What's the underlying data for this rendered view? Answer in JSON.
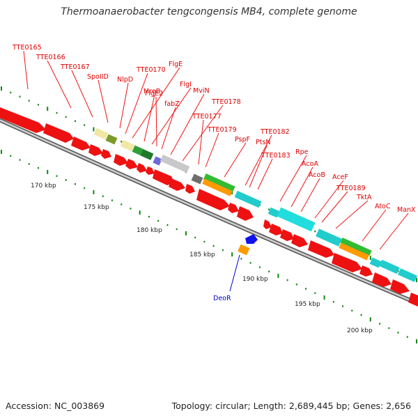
{
  "title": "Thermoanaerobacter tengcongensis MB4, complete genome",
  "footer": {
    "accession": "Accession: NC_003869",
    "summary": "Topology: circular; Length: 2,689,445 bp; Genes: 2,656"
  },
  "colors": {
    "backbone": "#7a7a7a",
    "cds": "#ee1111",
    "tick": "#118811",
    "label_line": "#ee1111",
    "label_text": "#dd0000",
    "reverse_label": "#0000cc"
  },
  "scale_labels": [
    {
      "text": "170 kbp"
    },
    {
      "text": "175 kbp"
    },
    {
      "text": "180 kbp"
    },
    {
      "text": "185 kbp"
    },
    {
      "text": "190 kbp"
    },
    {
      "text": "195 kbp"
    },
    {
      "text": "200 kbp"
    }
  ],
  "gene_labels": [
    {
      "text": "TTE0165"
    },
    {
      "text": "TTE0166"
    },
    {
      "text": "TTE0167"
    },
    {
      "text": "SpoIID"
    },
    {
      "text": "NlpD"
    },
    {
      "text": "TTE0170"
    },
    {
      "text": "FlgE"
    },
    {
      "text": "MreB"
    },
    {
      "text": "FlgI"
    },
    {
      "text": "FlgE2"
    },
    {
      "text": "MviN"
    },
    {
      "text": "fabZ"
    },
    {
      "text": "TTE0178"
    },
    {
      "text": "TTE0177"
    },
    {
      "text": "TTE0179"
    },
    {
      "text": "TTE0182"
    },
    {
      "text": "PspF"
    },
    {
      "text": "PtsN"
    },
    {
      "text": "TTE0183"
    },
    {
      "text": "Rpe"
    },
    {
      "text": "AcoA"
    },
    {
      "text": "AcoB"
    },
    {
      "text": "AceF"
    },
    {
      "text": "TTE0189"
    },
    {
      "text": "TktA"
    },
    {
      "text": "AtoC"
    },
    {
      "text": "ManX"
    }
  ],
  "reverse_labels": [
    {
      "text": "DeoR"
    }
  ]
}
